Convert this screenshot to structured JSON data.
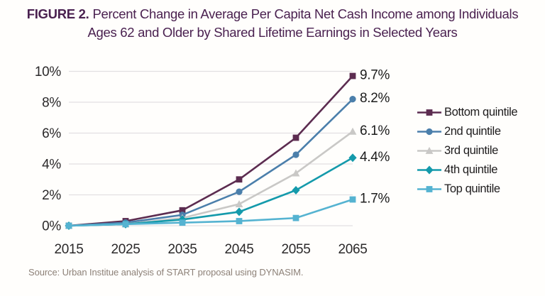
{
  "title": {
    "figure_label": "FIGURE 2.",
    "line1": "Percent Change in Average Per Capita Net Cash Income among Individuals",
    "line2": "Ages 62 and Older by Shared Lifetime Earnings in Selected Years"
  },
  "source": "Source: Urban Institue analysis of START proposal using DYNASIM.",
  "colors": {
    "title": "#4a2150",
    "gridline": "#e2e0e2",
    "axis_text": "#2b292a",
    "end_label_text": "#1c1c1c",
    "source_text": "#8d8178"
  },
  "chart_data": {
    "type": "line",
    "title": "FIGURE 2. Percent Change in Average Per Capita Net Cash Income among Individuals Ages 62 and Older by Shared Lifetime Earnings in Selected Years",
    "x": [
      2015,
      2025,
      2035,
      2045,
      2055,
      2065
    ],
    "xlabel": "",
    "ylabel": "",
    "ylim": [
      0,
      10
    ],
    "ytick_values": [
      0,
      2,
      4,
      6,
      8,
      10
    ],
    "ytick_labels": [
      "0%",
      "2%",
      "4%",
      "6%",
      "8%",
      "10%"
    ],
    "grid": true,
    "legend_position": "right",
    "series": [
      {
        "name": "Bottom quintile",
        "color": "#5c2c50",
        "marker": "square",
        "values": [
          0,
          0.3,
          1.0,
          3.0,
          5.7,
          9.7
        ],
        "end_label": "9.7%"
      },
      {
        "name": "2nd quintile",
        "color": "#4b7fab",
        "marker": "circle",
        "values": [
          0,
          0.2,
          0.7,
          2.2,
          4.6,
          8.2
        ],
        "end_label": "8.2%"
      },
      {
        "name": "3rd quintile",
        "color": "#c9c8c6",
        "marker": "triangle",
        "values": [
          0,
          0.1,
          0.5,
          1.4,
          3.4,
          6.1
        ],
        "end_label": "6.1%"
      },
      {
        "name": "4th quintile",
        "color": "#149aab",
        "marker": "diamond",
        "values": [
          0,
          0.1,
          0.4,
          0.9,
          2.3,
          4.4
        ],
        "end_label": "4.4%"
      },
      {
        "name": "Top quintile",
        "color": "#55b3d1",
        "marker": "square",
        "values": [
          0,
          0.1,
          0.2,
          0.3,
          0.5,
          1.7
        ],
        "end_label": "1.7%"
      }
    ]
  }
}
